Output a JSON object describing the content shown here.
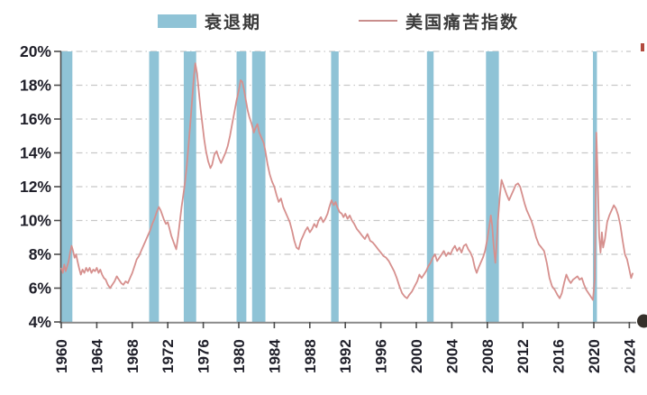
{
  "legend": {
    "recession_label": "衰退期",
    "misery_label": "美国痛苦指数"
  },
  "colors": {
    "recession_band": "#8FC3D6",
    "misery_line": "#D6908E",
    "legend_line": "#C98E8D",
    "grid_line": "#C8C8C8",
    "axis_line": "#8A8A8A",
    "tick_mark": "#4D4D4D",
    "tick_label": "#20202A"
  },
  "artifacts": {
    "right_axis_partial_label": "0",
    "top_right_mark_color": "#B24A3E",
    "bottom_right_dot_color": "#35302A"
  },
  "chart_data": {
    "type": "line",
    "title": "",
    "xlabel": "",
    "ylabel": "",
    "xlim": [
      1959.95,
      2024.7
    ],
    "ylim": [
      4,
      20
    ],
    "grid": "horizontal dash-dot",
    "legend_position": "top",
    "x_ticks": [
      1960,
      1964,
      1968,
      1972,
      1976,
      1980,
      1984,
      1988,
      1992,
      1996,
      2000,
      2004,
      2008,
      2012,
      2016,
      2020,
      2024
    ],
    "y_ticks": {
      "values": [
        4,
        6,
        8,
        10,
        12,
        14,
        16,
        18,
        20
      ],
      "labels": [
        "4%",
        "6%",
        "8%",
        "10%",
        "12%",
        "14%",
        "16%",
        "18%",
        "20%"
      ]
    },
    "recession_bands": [
      {
        "start": 1960.0,
        "end": 1961.25
      },
      {
        "start": 1969.9,
        "end": 1971.0
      },
      {
        "start": 1973.8,
        "end": 1975.2
      },
      {
        "start": 1979.75,
        "end": 1980.85
      },
      {
        "start": 1981.5,
        "end": 1983.0
      },
      {
        "start": 1990.4,
        "end": 1991.25
      },
      {
        "start": 2001.2,
        "end": 2001.95
      },
      {
        "start": 2007.85,
        "end": 2009.3
      },
      {
        "start": 2019.9,
        "end": 2020.35
      }
    ],
    "series": [
      {
        "name": "美国痛苦指数",
        "unit": "%",
        "points": [
          [
            1960.0,
            7.2
          ],
          [
            1960.17,
            6.9
          ],
          [
            1960.33,
            7.4
          ],
          [
            1960.5,
            7.0
          ],
          [
            1960.67,
            7.3
          ],
          [
            1960.83,
            7.6
          ],
          [
            1961.0,
            8.1
          ],
          [
            1961.17,
            8.5
          ],
          [
            1961.33,
            8.2
          ],
          [
            1961.5,
            7.8
          ],
          [
            1961.67,
            8.0
          ],
          [
            1961.83,
            7.6
          ],
          [
            1962.0,
            7.2
          ],
          [
            1962.2,
            6.8
          ],
          [
            1962.4,
            7.1
          ],
          [
            1962.6,
            6.9
          ],
          [
            1962.8,
            7.2
          ],
          [
            1963.0,
            7.0
          ],
          [
            1963.2,
            7.2
          ],
          [
            1963.4,
            6.9
          ],
          [
            1963.6,
            7.1
          ],
          [
            1963.8,
            7.0
          ],
          [
            1964.0,
            7.2
          ],
          [
            1964.2,
            6.9
          ],
          [
            1964.4,
            7.1
          ],
          [
            1964.6,
            6.8
          ],
          [
            1964.8,
            6.6
          ],
          [
            1965.0,
            6.5
          ],
          [
            1965.25,
            6.2
          ],
          [
            1965.5,
            6.0
          ],
          [
            1965.75,
            6.2
          ],
          [
            1966.0,
            6.4
          ],
          [
            1966.25,
            6.7
          ],
          [
            1966.5,
            6.5
          ],
          [
            1966.75,
            6.3
          ],
          [
            1967.0,
            6.2
          ],
          [
            1967.25,
            6.4
          ],
          [
            1967.5,
            6.3
          ],
          [
            1967.75,
            6.6
          ],
          [
            1968.0,
            6.9
          ],
          [
            1968.25,
            7.3
          ],
          [
            1968.5,
            7.7
          ],
          [
            1968.75,
            7.9
          ],
          [
            1969.0,
            8.2
          ],
          [
            1969.25,
            8.5
          ],
          [
            1969.5,
            8.8
          ],
          [
            1969.75,
            9.1
          ],
          [
            1970.0,
            9.4
          ],
          [
            1970.25,
            9.8
          ],
          [
            1970.5,
            10.1
          ],
          [
            1970.75,
            10.5
          ],
          [
            1971.0,
            10.8
          ],
          [
            1971.2,
            10.6
          ],
          [
            1971.4,
            10.3
          ],
          [
            1971.6,
            10.0
          ],
          [
            1971.8,
            9.8
          ],
          [
            1972.0,
            9.9
          ],
          [
            1972.2,
            9.5
          ],
          [
            1972.4,
            9.1
          ],
          [
            1972.6,
            8.8
          ],
          [
            1972.8,
            8.5
          ],
          [
            1972.95,
            8.3
          ],
          [
            1973.15,
            9.0
          ],
          [
            1973.35,
            9.9
          ],
          [
            1973.55,
            10.8
          ],
          [
            1973.75,
            11.5
          ],
          [
            1973.95,
            12.3
          ],
          [
            1974.15,
            13.3
          ],
          [
            1974.35,
            14.5
          ],
          [
            1974.55,
            15.8
          ],
          [
            1974.75,
            17.2
          ],
          [
            1974.95,
            18.6
          ],
          [
            1975.1,
            19.3
          ],
          [
            1975.3,
            18.7
          ],
          [
            1975.5,
            17.6
          ],
          [
            1975.7,
            16.6
          ],
          [
            1975.9,
            15.7
          ],
          [
            1976.1,
            14.8
          ],
          [
            1976.3,
            14.1
          ],
          [
            1976.55,
            13.5
          ],
          [
            1976.8,
            13.1
          ],
          [
            1977.0,
            13.3
          ],
          [
            1977.25,
            13.9
          ],
          [
            1977.5,
            14.1
          ],
          [
            1977.75,
            13.7
          ],
          [
            1978.0,
            13.4
          ],
          [
            1978.25,
            13.7
          ],
          [
            1978.5,
            14.0
          ],
          [
            1978.75,
            14.4
          ],
          [
            1979.0,
            15.0
          ],
          [
            1979.25,
            15.7
          ],
          [
            1979.5,
            16.4
          ],
          [
            1979.75,
            17.1
          ],
          [
            1980.0,
            17.7
          ],
          [
            1980.2,
            18.3
          ],
          [
            1980.4,
            18.2
          ],
          [
            1980.6,
            17.7
          ],
          [
            1980.8,
            17.1
          ],
          [
            1981.0,
            16.5
          ],
          [
            1981.2,
            16.1
          ],
          [
            1981.45,
            15.7
          ],
          [
            1981.7,
            15.2
          ],
          [
            1981.9,
            15.5
          ],
          [
            1982.1,
            15.7
          ],
          [
            1982.3,
            15.2
          ],
          [
            1982.55,
            14.9
          ],
          [
            1982.8,
            14.6
          ],
          [
            1983.0,
            14.1
          ],
          [
            1983.25,
            13.3
          ],
          [
            1983.5,
            12.7
          ],
          [
            1983.75,
            12.3
          ],
          [
            1984.0,
            12.0
          ],
          [
            1984.25,
            11.5
          ],
          [
            1984.5,
            11.1
          ],
          [
            1984.75,
            11.3
          ],
          [
            1985.0,
            10.8
          ],
          [
            1985.25,
            10.5
          ],
          [
            1985.5,
            10.2
          ],
          [
            1985.75,
            9.9
          ],
          [
            1986.0,
            9.4
          ],
          [
            1986.25,
            8.8
          ],
          [
            1986.5,
            8.4
          ],
          [
            1986.75,
            8.3
          ],
          [
            1987.0,
            8.8
          ],
          [
            1987.25,
            9.1
          ],
          [
            1987.5,
            9.4
          ],
          [
            1987.75,
            9.6
          ],
          [
            1988.0,
            9.3
          ],
          [
            1988.25,
            9.5
          ],
          [
            1988.5,
            9.8
          ],
          [
            1988.75,
            9.6
          ],
          [
            1989.0,
            10.0
          ],
          [
            1989.25,
            10.2
          ],
          [
            1989.5,
            9.9
          ],
          [
            1989.75,
            10.1
          ],
          [
            1990.0,
            10.4
          ],
          [
            1990.2,
            10.8
          ],
          [
            1990.45,
            11.2
          ],
          [
            1990.7,
            10.9
          ],
          [
            1990.9,
            11.1
          ],
          [
            1991.1,
            10.8
          ],
          [
            1991.35,
            10.5
          ],
          [
            1991.6,
            10.4
          ],
          [
            1991.8,
            10.2
          ],
          [
            1992.0,
            10.4
          ],
          [
            1992.25,
            10.1
          ],
          [
            1992.5,
            10.3
          ],
          [
            1992.75,
            10.0
          ],
          [
            1993.0,
            9.8
          ],
          [
            1993.3,
            9.5
          ],
          [
            1993.6,
            9.3
          ],
          [
            1993.9,
            9.1
          ],
          [
            1994.2,
            8.9
          ],
          [
            1994.5,
            9.2
          ],
          [
            1994.8,
            8.8
          ],
          [
            1995.1,
            8.7
          ],
          [
            1995.4,
            8.5
          ],
          [
            1995.7,
            8.3
          ],
          [
            1996.0,
            8.1
          ],
          [
            1996.3,
            7.9
          ],
          [
            1996.6,
            7.8
          ],
          [
            1996.9,
            7.6
          ],
          [
            1997.2,
            7.3
          ],
          [
            1997.5,
            7.0
          ],
          [
            1997.8,
            6.6
          ],
          [
            1998.1,
            6.1
          ],
          [
            1998.4,
            5.7
          ],
          [
            1998.7,
            5.5
          ],
          [
            1998.95,
            5.4
          ],
          [
            1999.2,
            5.6
          ],
          [
            1999.5,
            5.8
          ],
          [
            1999.8,
            6.1
          ],
          [
            2000.1,
            6.4
          ],
          [
            2000.35,
            6.8
          ],
          [
            2000.6,
            6.6
          ],
          [
            2000.85,
            6.8
          ],
          [
            2001.1,
            7.0
          ],
          [
            2001.35,
            7.3
          ],
          [
            2001.6,
            7.5
          ],
          [
            2001.85,
            7.8
          ],
          [
            2002.1,
            8.0
          ],
          [
            2002.35,
            7.6
          ],
          [
            2002.6,
            7.8
          ],
          [
            2002.85,
            8.0
          ],
          [
            2003.1,
            8.2
          ],
          [
            2003.35,
            7.9
          ],
          [
            2003.6,
            8.1
          ],
          [
            2003.85,
            8.0
          ],
          [
            2004.1,
            8.3
          ],
          [
            2004.35,
            8.5
          ],
          [
            2004.6,
            8.2
          ],
          [
            2004.85,
            8.4
          ],
          [
            2005.1,
            8.1
          ],
          [
            2005.35,
            8.5
          ],
          [
            2005.6,
            8.6
          ],
          [
            2005.85,
            8.3
          ],
          [
            2006.1,
            8.1
          ],
          [
            2006.35,
            7.8
          ],
          [
            2006.6,
            7.2
          ],
          [
            2006.8,
            6.9
          ],
          [
            2007.0,
            7.2
          ],
          [
            2007.25,
            7.5
          ],
          [
            2007.5,
            7.8
          ],
          [
            2007.75,
            8.2
          ],
          [
            2008.0,
            8.9
          ],
          [
            2008.2,
            9.6
          ],
          [
            2008.4,
            10.3
          ],
          [
            2008.55,
            9.7
          ],
          [
            2008.7,
            8.6
          ],
          [
            2008.9,
            7.5
          ],
          [
            2009.05,
            8.6
          ],
          [
            2009.2,
            10.0
          ],
          [
            2009.4,
            11.4
          ],
          [
            2009.6,
            12.4
          ],
          [
            2009.8,
            12.1
          ],
          [
            2010.0,
            11.8
          ],
          [
            2010.2,
            11.5
          ],
          [
            2010.45,
            11.2
          ],
          [
            2010.7,
            11.5
          ],
          [
            2010.95,
            11.8
          ],
          [
            2011.2,
            12.1
          ],
          [
            2011.45,
            12.2
          ],
          [
            2011.7,
            12.0
          ],
          [
            2011.95,
            11.5
          ],
          [
            2012.2,
            11.0
          ],
          [
            2012.45,
            10.6
          ],
          [
            2012.7,
            10.3
          ],
          [
            2012.95,
            10.0
          ],
          [
            2013.2,
            9.6
          ],
          [
            2013.5,
            9.0
          ],
          [
            2013.8,
            8.6
          ],
          [
            2014.1,
            8.4
          ],
          [
            2014.4,
            8.2
          ],
          [
            2014.7,
            7.5
          ],
          [
            2015.0,
            6.6
          ],
          [
            2015.3,
            6.1
          ],
          [
            2015.6,
            5.9
          ],
          [
            2015.9,
            5.6
          ],
          [
            2016.15,
            5.4
          ],
          [
            2016.4,
            5.7
          ],
          [
            2016.65,
            6.3
          ],
          [
            2016.9,
            6.8
          ],
          [
            2017.15,
            6.5
          ],
          [
            2017.4,
            6.3
          ],
          [
            2017.65,
            6.5
          ],
          [
            2017.9,
            6.6
          ],
          [
            2018.15,
            6.7
          ],
          [
            2018.4,
            6.5
          ],
          [
            2018.65,
            6.6
          ],
          [
            2018.9,
            6.2
          ],
          [
            2019.15,
            5.9
          ],
          [
            2019.4,
            5.7
          ],
          [
            2019.65,
            5.5
          ],
          [
            2019.9,
            5.3
          ],
          [
            2020.1,
            6.5
          ],
          [
            2020.28,
            15.2
          ],
          [
            2020.45,
            12.3
          ],
          [
            2020.6,
            9.1
          ],
          [
            2020.75,
            8.1
          ],
          [
            2020.9,
            9.3
          ],
          [
            2021.05,
            8.4
          ],
          [
            2021.25,
            8.9
          ],
          [
            2021.5,
            9.9
          ],
          [
            2021.75,
            10.3
          ],
          [
            2022.0,
            10.6
          ],
          [
            2022.25,
            10.9
          ],
          [
            2022.5,
            10.7
          ],
          [
            2022.75,
            10.3
          ],
          [
            2023.0,
            9.7
          ],
          [
            2023.25,
            8.8
          ],
          [
            2023.5,
            8.0
          ],
          [
            2023.75,
            7.7
          ],
          [
            2024.0,
            7.1
          ],
          [
            2024.2,
            6.6
          ],
          [
            2024.4,
            6.9
          ]
        ]
      }
    ]
  }
}
